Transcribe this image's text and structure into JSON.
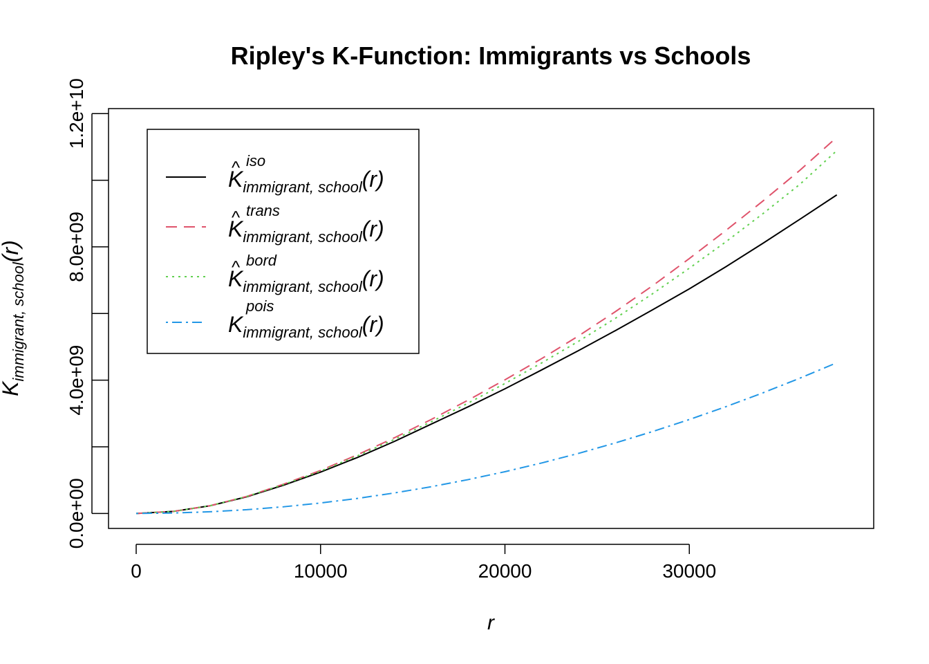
{
  "chart_data": {
    "type": "line",
    "title": "Ripley's K-Function: Immigrants vs Schools",
    "xlabel": "r",
    "ylabel": {
      "base": "K",
      "subscript": "immigrant, school",
      "arg": "(r)"
    },
    "xlim": [
      -1500,
      40000
    ],
    "ylim": [
      -450000000,
      12150000000
    ],
    "x_ticks": [
      0,
      10000,
      20000,
      30000
    ],
    "x_tick_labels": [
      "0",
      "10000",
      "20000",
      "30000"
    ],
    "y_ticks": [
      0,
      2000000000,
      4000000000,
      6000000000,
      8000000000,
      10000000000,
      12000000000
    ],
    "y_tick_labels": [
      "0.0e+00",
      "",
      "4.0e+09",
      "",
      "8.0e+09",
      "",
      "1.2e+10"
    ],
    "x": [
      0,
      2000,
      4000,
      6000,
      8000,
      10000,
      12000,
      14000,
      16000,
      18000,
      20000,
      22000,
      24000,
      26000,
      28000,
      30000,
      32000,
      34000,
      36000,
      38000
    ],
    "series": [
      {
        "name": "iso",
        "label_sup": "iso",
        "hat": true,
        "color": "#000000",
        "dash": "",
        "values": [
          0,
          60000000,
          230000000,
          500000000,
          850000000,
          1240000000,
          1680000000,
          2160000000,
          2680000000,
          3200000000,
          3740000000,
          4310000000,
          4890000000,
          5490000000,
          6110000000,
          6740000000,
          7410000000,
          8110000000,
          8830000000,
          9560000000
        ]
      },
      {
        "name": "trans",
        "label_sup": "trans",
        "hat": true,
        "color": "#DF536B",
        "dash": "16 10",
        "values": [
          0,
          60000000,
          230000000,
          510000000,
          880000000,
          1290000000,
          1760000000,
          2270000000,
          2820000000,
          3400000000,
          4010000000,
          4650000000,
          5330000000,
          6060000000,
          6830000000,
          7650000000,
          8500000000,
          9380000000,
          10300000000,
          11290000000
        ]
      },
      {
        "name": "bord",
        "label_sup": "bord",
        "hat": true,
        "color": "#61D04F",
        "dash": "3 6",
        "values": [
          0,
          60000000,
          230000000,
          510000000,
          870000000,
          1270000000,
          1730000000,
          2220000000,
          2750000000,
          3310000000,
          3900000000,
          4520000000,
          5170000000,
          5860000000,
          6590000000,
          7360000000,
          8160000000,
          9000000000,
          9880000000,
          10890000000
        ]
      },
      {
        "name": "pois",
        "label_sup": "pois",
        "hat": false,
        "color": "#2297E6",
        "dash": "3 6 14 6",
        "values": [
          0,
          12500000,
          50000000,
          112000000,
          200000000,
          313000000,
          451000000,
          614000000,
          802000000,
          1015000000,
          1253000000,
          1516000000,
          1804000000,
          2118000000,
          2456000000,
          2819000000,
          3208000000,
          3621000000,
          4060000000,
          4523000000
        ]
      }
    ],
    "legend": {
      "position": "top-left",
      "subscript": "immigrant, school",
      "arg": "(r)",
      "base": "K"
    }
  }
}
